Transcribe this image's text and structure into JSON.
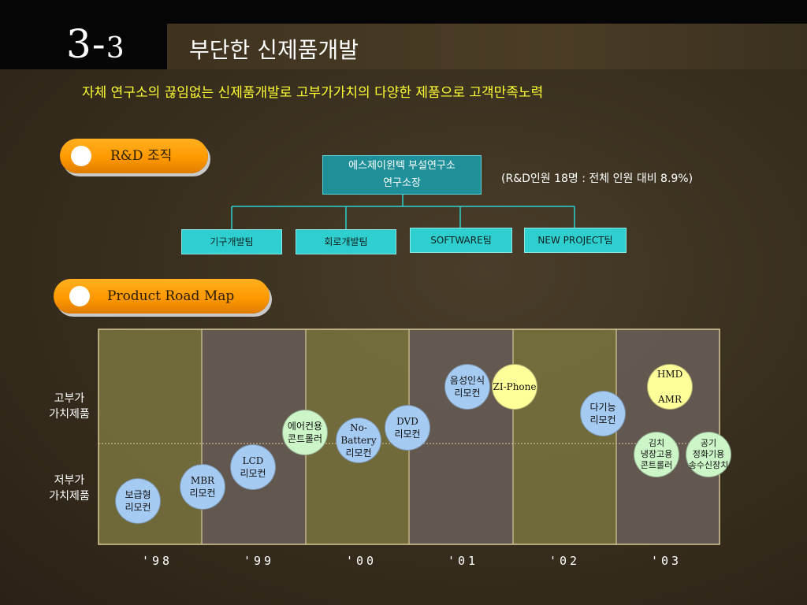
{
  "header": {
    "section_number": "3-",
    "section_number_sub": "3",
    "title": "부단한 신제품개발"
  },
  "subtitle": "자체 연구소의 끊임없는 신제품개발로 고부가가치의 다양한 제품으로 고객만족노력",
  "rnd": {
    "section_label": "R&D 조직",
    "lab_name": "에스제이윈텍 부설연구소",
    "lab_head": "연구소장",
    "ratio_note": "(R&D인원 18명 : 전체 인원 대비 8.9%)",
    "teams": [
      "기구개발팀",
      "회로개발팀",
      "SOFTWARE팀",
      "NEW PROJECT팀"
    ]
  },
  "roadmap": {
    "section_label": "Product Road Map",
    "row_high": "고부가\n가치제품",
    "row_low": "저부가\n가치제품",
    "years": [
      "'98",
      "'99",
      "'00",
      "'01",
      "'02",
      "'03"
    ],
    "products": [
      {
        "label": "보급형\n리모컨",
        "year": "'98",
        "tier": "low",
        "color": "blue"
      },
      {
        "label": "MBR\n리모컨",
        "year": "'99",
        "tier": "low",
        "color": "blue"
      },
      {
        "label": "LCD\n리모컨",
        "year": "'99",
        "tier": "low",
        "color": "blue"
      },
      {
        "label": "에어컨용\n콘트롤러",
        "year": "'00",
        "tier": "mid",
        "color": "green"
      },
      {
        "label": "No-Battery\n리모컨",
        "year": "'00",
        "tier": "mid",
        "color": "blue"
      },
      {
        "label": "DVD\n리모컨",
        "year": "'00",
        "tier": "mid",
        "color": "blue"
      },
      {
        "label": "음성인식\n리모컨",
        "year": "'01",
        "tier": "high",
        "color": "blue"
      },
      {
        "label": "ZI-Phone",
        "year": "'01",
        "tier": "high",
        "color": "yellow"
      },
      {
        "label": "다기능\n리모컨",
        "year": "'02",
        "tier": "high",
        "color": "blue"
      },
      {
        "label": "HMD\n\nAMR",
        "year": "'03",
        "tier": "high",
        "color": "yellow"
      },
      {
        "label": "김치\n냉장고용\n콘트롤러",
        "year": "'03",
        "tier": "mid",
        "color": "green"
      },
      {
        "label": "공기\n정화기용\n송수신장치",
        "year": "'03",
        "tier": "mid",
        "color": "green"
      }
    ]
  },
  "colors": {
    "accent_orange": "#ff9900",
    "title_yellow": "#ffff33",
    "org_teal": "#1f8f9a",
    "team_cyan": "#2fcfcf"
  }
}
